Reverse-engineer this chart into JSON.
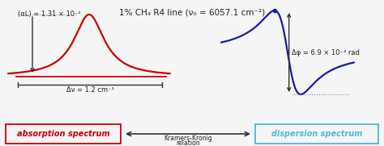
{
  "title": "1% CH₄ R4 line (ν₀ = 6057.1 cm⁻¹)",
  "absorption_label": "absorption spectrum",
  "dispersion_label": "dispersion spectrum",
  "kk_label1": "Kramers-Kronig",
  "kk_label2": "relation",
  "al_annotation": "(αL) = 1.31 × 10⁻²",
  "dnu_annotation": "Δν = 1.2 cm⁻¹",
  "dphi_annotation": "Δφ = 6.9 × 10⁻³ rad",
  "red_color": "#cc0000",
  "blue_color": "#1a1aaa",
  "box_red": "#cc0000",
  "box_blue": "#4db8d4",
  "bg_color": "#f5f5f5",
  "text_color": "#222222",
  "arrow_color": "#333333",
  "dotted_color": "#888888"
}
